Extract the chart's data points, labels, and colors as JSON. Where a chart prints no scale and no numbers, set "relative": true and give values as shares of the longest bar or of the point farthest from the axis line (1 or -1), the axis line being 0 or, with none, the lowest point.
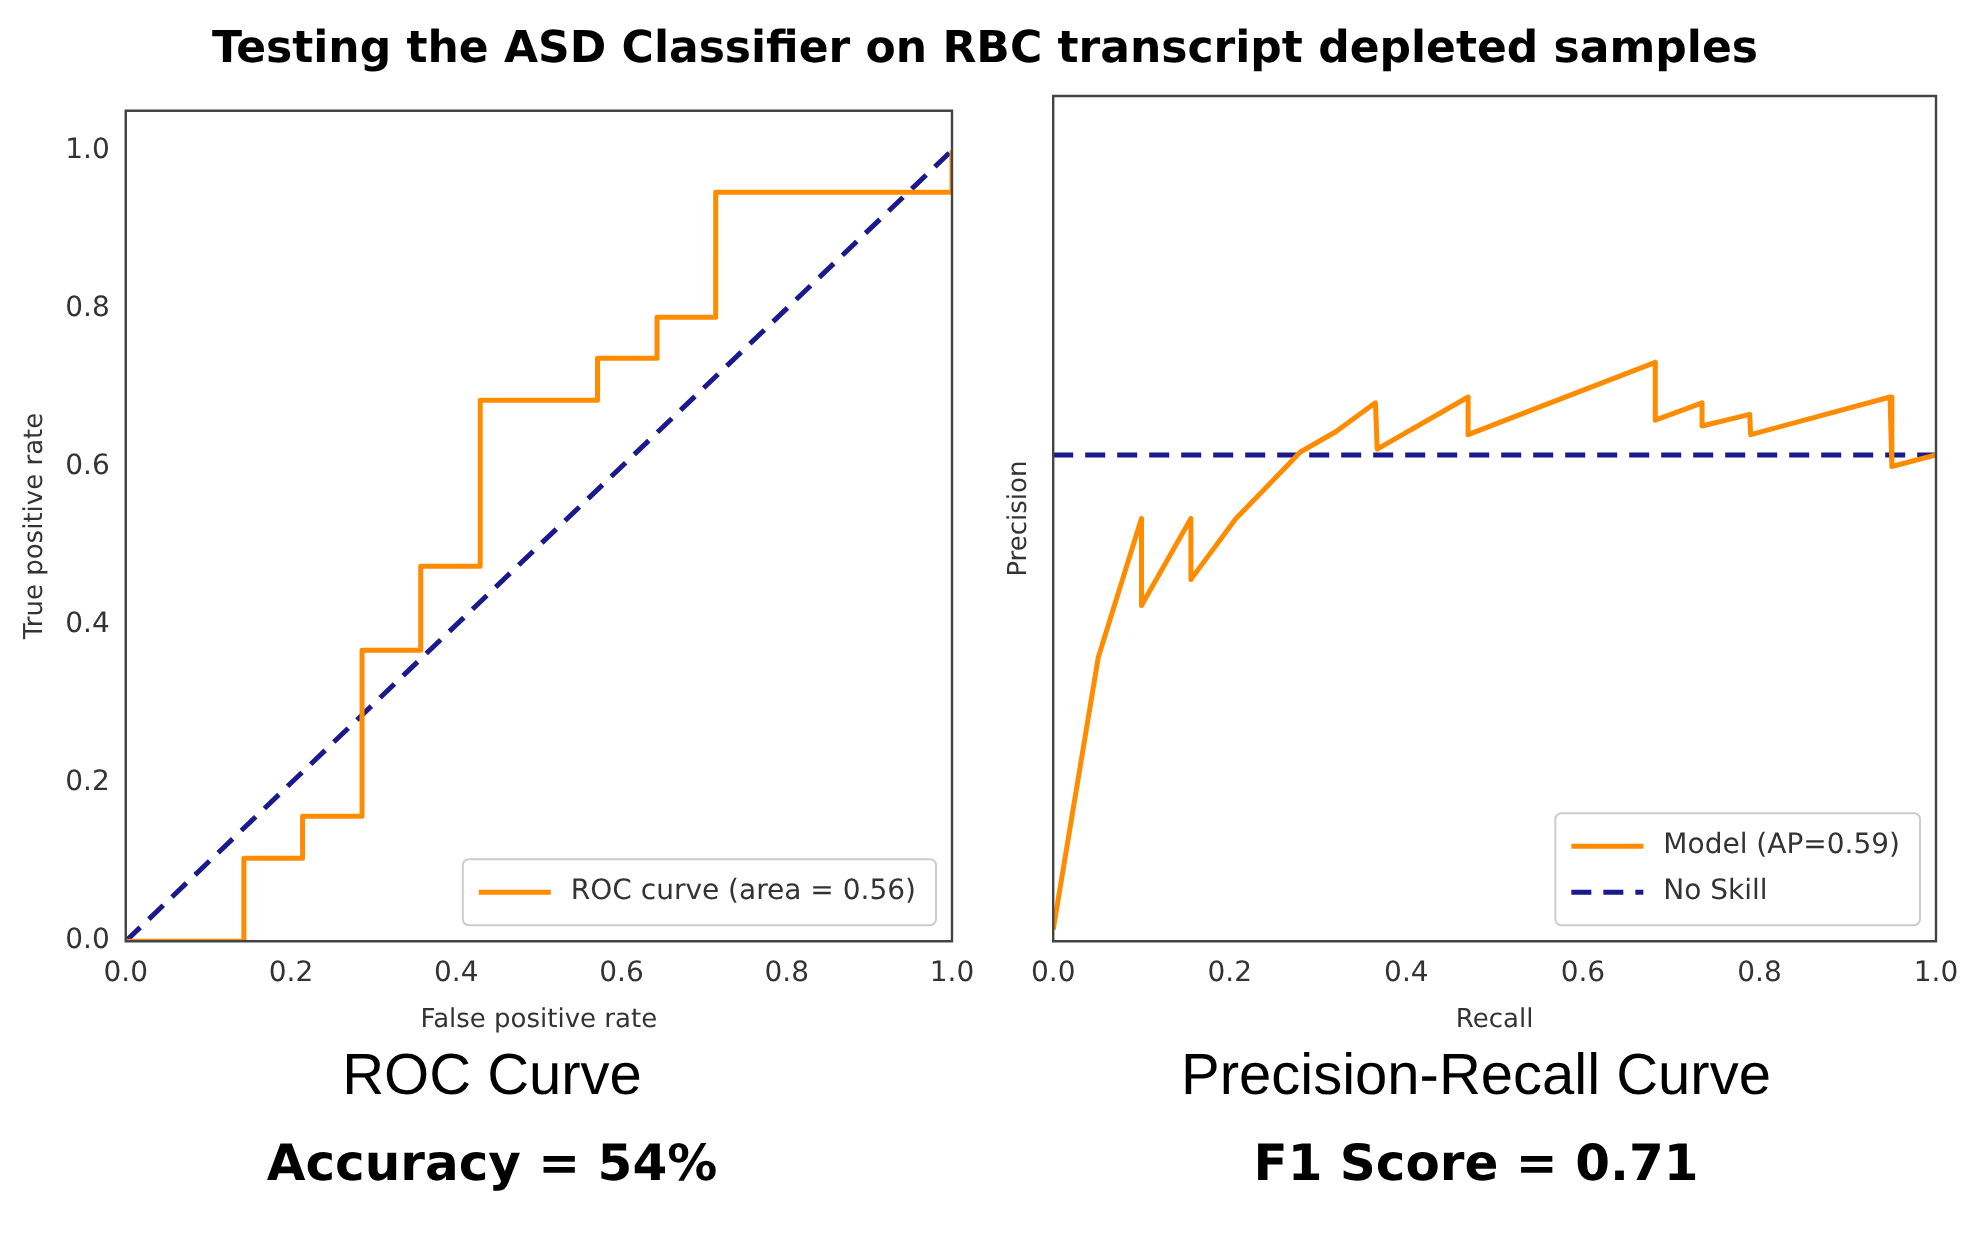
{
  "chart_data": [
    {
      "type": "line",
      "title": "Testing the ASD Classifier on RBC transcript depleted samples",
      "subtitle": "ROC Curve",
      "xlabel": "False positive rate",
      "ylabel": "True positive rate",
      "xlim": [
        0,
        1
      ],
      "ylim": [
        0,
        1.05
      ],
      "xticks": [
        {
          "value": 0,
          "label": "0.0"
        },
        {
          "value": 0.2,
          "label": "0.2"
        },
        {
          "value": 0.4,
          "label": "0.4"
        },
        {
          "value": 0.6,
          "label": "0.6"
        },
        {
          "value": 0.8,
          "label": "0.8"
        },
        {
          "value": 1,
          "label": "1.0"
        }
      ],
      "yticks": [
        {
          "value": 0,
          "label": "0.0"
        },
        {
          "value": 0.2,
          "label": "0.2"
        },
        {
          "value": 0.4,
          "label": "0.4"
        },
        {
          "value": 0.6,
          "label": "0.6"
        },
        {
          "value": 0.8,
          "label": "0.8"
        },
        {
          "value": 1,
          "label": "1.0"
        }
      ],
      "series": [
        {
          "name": "ROC curve (area = 0.56)",
          "color": "#ff8c00",
          "line_style": "solid",
          "x": [
            0,
            0.143,
            0.143,
            0.214,
            0.214,
            0.286,
            0.286,
            0.357,
            0.357,
            0.429,
            0.429,
            0.571,
            0.571,
            0.643,
            0.643,
            0.714,
            0.714,
            1,
            1
          ],
          "values": [
            0,
            0,
            0.105,
            0.105,
            0.158,
            0.158,
            0.368,
            0.368,
            0.474,
            0.474,
            0.684,
            0.684,
            0.737,
            0.737,
            0.789,
            0.789,
            0.947,
            0.947,
            1
          ]
        },
        {
          "color": "#1a1a8c",
          "line_style": "dashed",
          "x": [
            0,
            1
          ],
          "values": [
            0,
            1
          ]
        }
      ],
      "legend": "bottom right",
      "grid": false,
      "annotations": [
        "Accuracy = 54%"
      ]
    },
    {
      "type": "line",
      "subtitle": "Precision-Recall Curve",
      "xlabel": "Recall",
      "ylabel": "Precision",
      "relative": true,
      "xlim": [
        0,
        1
      ],
      "xticks": [
        {
          "value": 0,
          "label": "0.0"
        },
        {
          "value": 0.2,
          "label": "0.2"
        },
        {
          "value": 0.4,
          "label": "0.4"
        },
        {
          "value": 0.6,
          "label": "0.6"
        },
        {
          "value": 0.8,
          "label": "0.8"
        },
        {
          "value": 1,
          "label": "1.0"
        }
      ],
      "series": [
        {
          "name": "Model (AP=0.59)",
          "color": "#ff8c00",
          "line_style": "solid",
          "x": [
            0,
            0.051,
            0.1,
            0.1,
            0.156,
            0.156,
            0.207,
            0.28,
            0.32,
            0.365,
            0.367,
            0.47,
            0.47,
            0.682,
            0.682,
            0.735,
            0.735,
            0.789,
            0.79,
            0.948,
            0.95,
            1
          ],
          "values": [
            0.02,
            0.49,
            0.73,
            0.58,
            0.73,
            0.625,
            0.73,
            0.845,
            0.88,
            0.93,
            0.85,
            0.94,
            0.875,
            1,
            0.9,
            0.93,
            0.89,
            0.91,
            0.875,
            0.94,
            0.82,
            0.84
          ]
        },
        {
          "name": "No Skill",
          "color": "#1a1a8c",
          "line_style": "dashed",
          "x": [
            0,
            1
          ],
          "values": [
            0.84,
            0.84
          ]
        }
      ],
      "legend": "bottom right",
      "grid": false,
      "annotations": [
        "F1 Score = 0.71"
      ]
    }
  ]
}
